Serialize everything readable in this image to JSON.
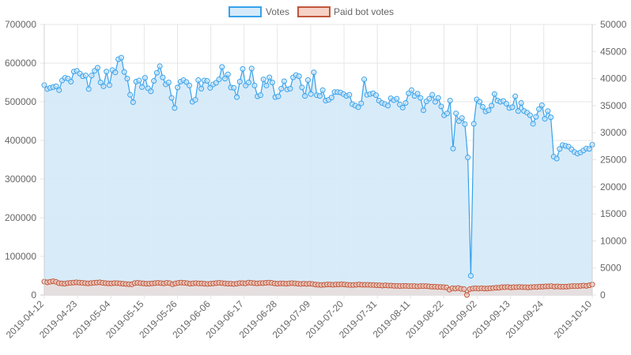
{
  "chart_data": {
    "type": "line",
    "title": "",
    "legend": {
      "position": "top"
    },
    "grid": true,
    "x_start": "2019-04-12",
    "x_end": "2019-10-10",
    "x_ticks": [
      "2019-04-12",
      "2019-04-23",
      "2019-05-04",
      "2019-05-15",
      "2019-05-26",
      "2019-06-06",
      "2019-06-17",
      "2019-06-28",
      "2019-07-09",
      "2019-07-20",
      "2019-07-31",
      "2019-08-11",
      "2019-08-22",
      "2019-09-02",
      "2019-09-13",
      "2019-09-24",
      "2019-10-10"
    ],
    "y_left": {
      "min": 0,
      "max": 700000,
      "ticks": [
        "0",
        "100000",
        "200000",
        "300000",
        "400000",
        "500000",
        "600000",
        "700000"
      ]
    },
    "y_right": {
      "min": 0,
      "max": 50000,
      "ticks": [
        "0",
        "5000",
        "10000",
        "15000",
        "20000",
        "25000",
        "30000",
        "35000",
        "40000",
        "45000",
        "50000"
      ]
    },
    "series": [
      {
        "name": "Votes",
        "axis": "left",
        "color": "#36a2eb",
        "fill": "#d6eaf9",
        "values": [
          543000,
          533000,
          536000,
          538000,
          540000,
          530000,
          555000,
          562000,
          560000,
          552000,
          578000,
          580000,
          573000,
          566000,
          568000,
          533000,
          568000,
          580000,
          588000,
          550000,
          540000,
          578000,
          543000,
          582000,
          576000,
          610000,
          614000,
          577000,
          560000,
          518000,
          499000,
          552000,
          555000,
          538000,
          562000,
          535000,
          527000,
          554000,
          575000,
          592000,
          563000,
          545000,
          550000,
          510000,
          484000,
          537000,
          552000,
          556000,
          551000,
          542000,
          500000,
          505000,
          556000,
          534000,
          555000,
          554000,
          536000,
          545000,
          549000,
          558000,
          590000,
          560000,
          571000,
          537000,
          536000,
          512000,
          552000,
          585000,
          542000,
          550000,
          586000,
          542000,
          514000,
          517000,
          558000,
          542000,
          563000,
          550000,
          512000,
          514000,
          534000,
          553000,
          532000,
          534000,
          563000,
          569000,
          566000,
          537000,
          515000,
          556000,
          520000,
          576000,
          517000,
          515000,
          530000,
          503000,
          505000,
          511000,
          525000,
          525000,
          524000,
          520000,
          515000,
          518000,
          494000,
          490000,
          486000,
          496000,
          558000,
          518000,
          520000,
          522000,
          517000,
          503000,
          497000,
          494000,
          490000,
          509000,
          504000,
          508000,
          493000,
          485000,
          497000,
          522000,
          530000,
          515000,
          521000,
          510000,
          478000,
          501000,
          508000,
          518000,
          500000,
          510000,
          488000,
          465000,
          470000,
          503000,
          379000,
          470000,
          450000,
          458000,
          442000,
          356000,
          50000,
          443000,
          506000,
          500000,
          487000,
          475000,
          478000,
          490000,
          520000,
          503000,
          500000,
          502000,
          495000,
          484000,
          486000,
          514000,
          476000,
          497000,
          476000,
          472000,
          465000,
          443000,
          461000,
          481000,
          491000,
          456000,
          476000,
          460000,
          358000,
          353000,
          378000,
          388000,
          386000,
          384000,
          377000,
          370000,
          366000,
          369000,
          374000,
          379000,
          378000,
          389000
        ]
      },
      {
        "name": "Paid bot votes",
        "axis": "right",
        "color": "#c0563a",
        "fill": "#f3d5cc",
        "values": [
          2480,
          2350,
          2450,
          2550,
          2450,
          2200,
          2150,
          2100,
          2200,
          2250,
          2300,
          2350,
          2300,
          2250,
          2200,
          2150,
          2200,
          2250,
          2300,
          2350,
          2250,
          2200,
          2150,
          2150,
          2200,
          2200,
          2150,
          2100,
          2050,
          2000,
          1980,
          2200,
          2250,
          2200,
          2150,
          2100,
          2100,
          2150,
          2200,
          2250,
          2200,
          2150,
          2250,
          2200,
          2000,
          2150,
          2250,
          2300,
          2250,
          2200,
          2100,
          2150,
          2200,
          2150,
          2150,
          2100,
          2050,
          2100,
          2150,
          2200,
          2250,
          2200,
          2150,
          2100,
          2100,
          2050,
          2100,
          2200,
          2200,
          2150,
          2300,
          2250,
          2200,
          2150,
          2200,
          2200,
          2250,
          2300,
          2250,
          2150,
          2100,
          2150,
          2150,
          2100,
          2150,
          2200,
          2150,
          2100,
          2050,
          2100,
          2050,
          2100,
          2050,
          1950,
          1900,
          1850,
          1900,
          1950,
          1950,
          1900,
          1950,
          1950,
          2000,
          1950,
          1900,
          1850,
          1850,
          1900,
          1950,
          1900,
          1900,
          1900,
          1850,
          1850,
          1800,
          1800,
          1750,
          1800,
          1750,
          1750,
          1700,
          1700,
          1650,
          1700,
          1700,
          1650,
          1650,
          1650,
          1600,
          1650,
          1650,
          1650,
          1600,
          1550,
          1550,
          1500,
          1500,
          1450,
          1400,
          1000,
          1250,
          1200,
          1300,
          1150,
          1100,
          20,
          1100,
          1200,
          1250,
          1200,
          1250,
          1200,
          1200,
          1250,
          1300,
          1350,
          1350,
          1450,
          1450,
          1500,
          1400,
          1450,
          1450,
          1500,
          1450,
          1450,
          1400,
          1450,
          1500,
          1500,
          1550,
          1550,
          1600,
          1600,
          1650,
          1550,
          1600,
          1550,
          1550,
          1550,
          1600,
          1650,
          1650,
          1650,
          1700,
          1750,
          1700,
          1800,
          1950
        ]
      }
    ]
  }
}
